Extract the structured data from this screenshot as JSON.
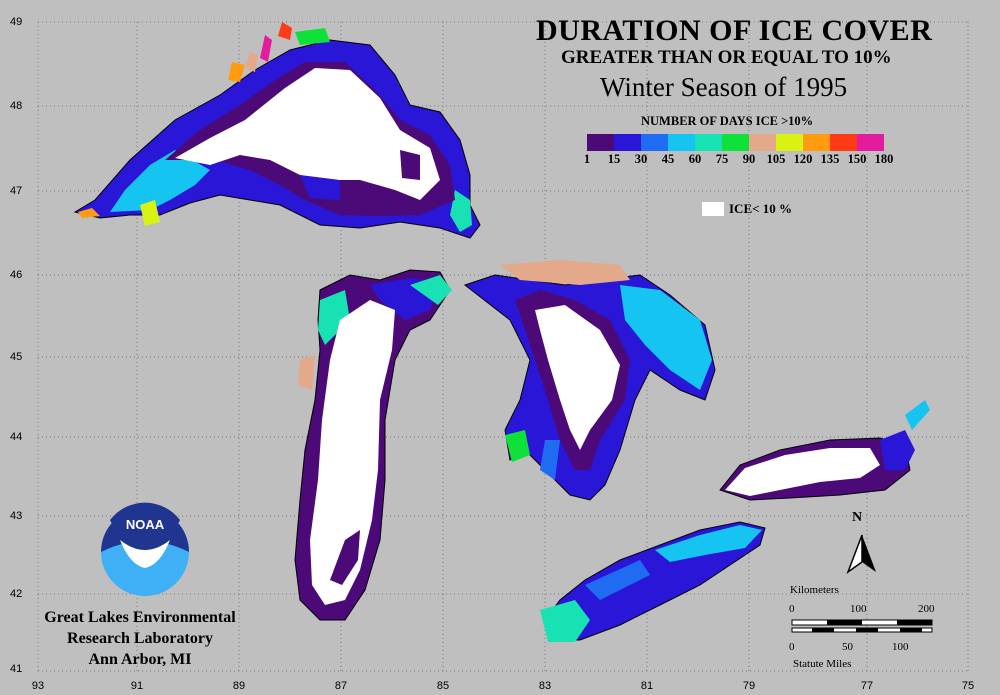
{
  "title": "DURATION OF ICE COVER",
  "subtitle": "GREATER THAN OR EQUAL TO 10%",
  "season": "Winter Season of 1995",
  "legend": {
    "title": "NUMBER OF DAYS ICE >10%",
    "colors": [
      "#4b0a78",
      "#2a16d6",
      "#1f6cf3",
      "#16c4f2",
      "#18e2b4",
      "#10e03a",
      "#e3a98a",
      "#d8f214",
      "#ff9b10",
      "#ff3a16",
      "#e31c9e"
    ],
    "ticks": [
      "1",
      "15",
      "30",
      "45",
      "60",
      "75",
      "90",
      "105",
      "120",
      "135",
      "150",
      "180"
    ],
    "ice_label": "ICE< 10 %"
  },
  "latitudes": [
    "49",
    "48",
    "47",
    "46",
    "45",
    "44",
    "43",
    "42",
    "41"
  ],
  "longitudes": [
    "93",
    "91",
    "89",
    "87",
    "85",
    "83",
    "81",
    "79",
    "77",
    "75"
  ],
  "organization": {
    "line1": "Great Lakes Environmental",
    "line2": "Research Laboratory",
    "line3": "Ann Arbor, MI"
  },
  "logo_text": "NOAA",
  "north_label": "N",
  "scale": {
    "km_label": "Kilometers",
    "km_ticks": [
      "0",
      "100",
      "200"
    ],
    "mi_ticks": [
      "0",
      "50",
      "100"
    ],
    "mi_label": "Statute Miles"
  }
}
